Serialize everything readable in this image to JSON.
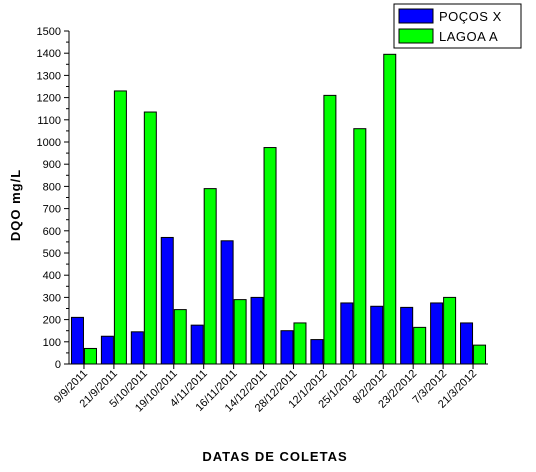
{
  "chart_data": {
    "type": "bar",
    "title": "",
    "xlabel": "DATAS DE COLETAS",
    "ylabel": "DQO mg/L",
    "ylim": [
      0,
      1500
    ],
    "yticks": [
      0,
      100,
      200,
      300,
      400,
      500,
      600,
      700,
      800,
      900,
      1000,
      1100,
      1200,
      1300,
      1400,
      1500
    ],
    "grid": false,
    "legend_position": "top-right",
    "categories": [
      "9/9/2011",
      "21/9/2011",
      "5/10/2011",
      "19/10/2011",
      "4/11/2011",
      "16/11/2011",
      "14/12/2011",
      "28/12/2011",
      "12/1/2012",
      "25/1/2012",
      "8/2/2012",
      "23/2/2012",
      "7/3/2012",
      "21/3/2012"
    ],
    "series": [
      {
        "name": "POÇOS X",
        "color": "#0000ff",
        "values": [
          210,
          125,
          145,
          570,
          175,
          555,
          300,
          150,
          110,
          275,
          260,
          255,
          275,
          185
        ]
      },
      {
        "name": "LAGOA A",
        "color": "#00ff00",
        "values": [
          70,
          1230,
          1135,
          245,
          790,
          290,
          975,
          185,
          1210,
          1060,
          1395,
          165,
          300,
          85
        ]
      }
    ]
  }
}
